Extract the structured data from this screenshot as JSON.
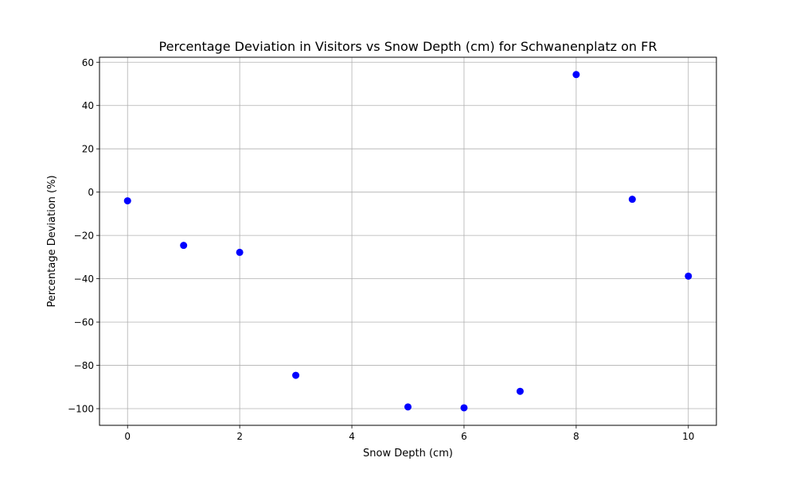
{
  "chart_data": {
    "type": "scatter",
    "title": "Percentage Deviation in Visitors vs Snow Depth (cm) for Schwanenplatz on FR",
    "xlabel": "Snow Depth (cm)",
    "ylabel": "Percentage Deviation (%)",
    "xlim": [
      -0.5,
      10.5
    ],
    "ylim": [
      -107.7,
      62.3
    ],
    "xticks": [
      0,
      2,
      4,
      6,
      8,
      10
    ],
    "xtick_labels": [
      "0",
      "2",
      "4",
      "6",
      "8",
      "10"
    ],
    "yticks": [
      -100,
      -80,
      -60,
      -40,
      -20,
      0,
      20,
      40,
      60
    ],
    "ytick_labels": [
      "−100",
      "−80",
      "−60",
      "−40",
      "−20",
      "0",
      "20",
      "40",
      "60"
    ],
    "grid": true,
    "marker_color": "#0000ff",
    "points": [
      {
        "x": 0,
        "y": -4.0
      },
      {
        "x": 1,
        "y": -24.6
      },
      {
        "x": 2,
        "y": -27.8
      },
      {
        "x": 3,
        "y": -84.6
      },
      {
        "x": 5,
        "y": -99.2
      },
      {
        "x": 6,
        "y": -99.6
      },
      {
        "x": 7,
        "y": -92.0
      },
      {
        "x": 8,
        "y": 54.3
      },
      {
        "x": 9,
        "y": -3.3
      },
      {
        "x": 10,
        "y": -38.8
      }
    ]
  }
}
